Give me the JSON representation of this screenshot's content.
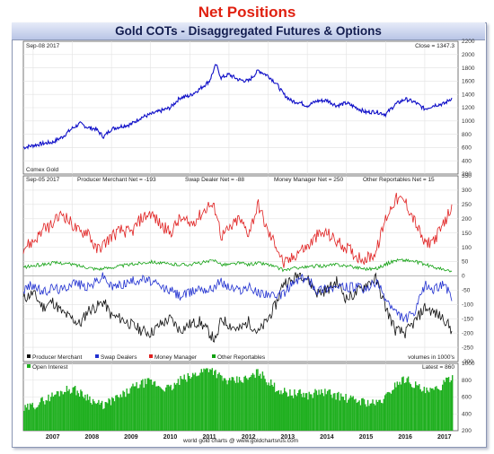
{
  "header": {
    "title": "Net Positions",
    "subtitle": "Gold COTs - Disaggregated Futures & Options",
    "footer": "world gold charts @ www.goldchartsrus.com"
  },
  "colors": {
    "price": "#1010c8",
    "producer": "#111111",
    "swap": "#2030d0",
    "money": "#e02020",
    "other": "#10a010",
    "oi": "#20b020"
  },
  "chart_data": [
    {
      "type": "line",
      "panel": "price",
      "date_label": "Sep-08 2017",
      "readout": "Close = 1347.3",
      "series_label": "Comex Gold",
      "ylim": [
        200,
        2200
      ],
      "yticks": [
        200,
        400,
        600,
        800,
        1000,
        1200,
        1400,
        1600,
        1800,
        2000,
        2200
      ],
      "x": [
        2006.75,
        2007.0,
        2007.25,
        2007.5,
        2007.75,
        2008.0,
        2008.2,
        2008.4,
        2008.6,
        2008.8,
        2009.0,
        2009.25,
        2009.5,
        2009.75,
        2010.0,
        2010.25,
        2010.5,
        2010.75,
        2011.0,
        2011.25,
        2011.5,
        2011.67,
        2011.8,
        2012.0,
        2012.25,
        2012.5,
        2012.75,
        2013.0,
        2013.2,
        2013.4,
        2013.6,
        2013.8,
        2014.0,
        2014.25,
        2014.5,
        2014.75,
        2015.0,
        2015.25,
        2015.5,
        2015.75,
        2016.0,
        2016.25,
        2016.5,
        2016.75,
        2017.0,
        2017.25,
        2017.5,
        2017.69
      ],
      "values": [
        600,
        630,
        660,
        680,
        760,
        890,
        960,
        900,
        880,
        760,
        880,
        920,
        950,
        1050,
        1100,
        1150,
        1200,
        1350,
        1380,
        1480,
        1600,
        1850,
        1650,
        1700,
        1620,
        1600,
        1760,
        1680,
        1570,
        1400,
        1300,
        1280,
        1230,
        1300,
        1310,
        1230,
        1270,
        1200,
        1130,
        1140,
        1100,
        1250,
        1330,
        1280,
        1180,
        1240,
        1260,
        1347
      ]
    },
    {
      "type": "line",
      "panel": "net_positions",
      "date_label": "Sep-05 2017",
      "readouts": [
        "Producer Merchant Net = -193",
        "Swap Dealer Net = -88",
        "Money Manager Net = 250",
        "Other Reportables Net = 15"
      ],
      "units_label": "volumes in 1000's",
      "ylim": [
        -300,
        350
      ],
      "yticks": [
        -300,
        -250,
        -200,
        -150,
        -100,
        -50,
        0,
        50,
        100,
        150,
        200,
        250,
        300,
        350
      ],
      "legend_position": "bottom-left",
      "x": [
        2006.75,
        2007.0,
        2007.25,
        2007.5,
        2007.75,
        2008.0,
        2008.2,
        2008.4,
        2008.6,
        2008.8,
        2009.0,
        2009.25,
        2009.5,
        2009.75,
        2010.0,
        2010.25,
        2010.5,
        2010.75,
        2011.0,
        2011.25,
        2011.5,
        2011.67,
        2011.8,
        2012.0,
        2012.25,
        2012.5,
        2012.75,
        2013.0,
        2013.2,
        2013.4,
        2013.6,
        2013.8,
        2014.0,
        2014.25,
        2014.5,
        2014.75,
        2015.0,
        2015.25,
        2015.5,
        2015.75,
        2016.0,
        2016.25,
        2016.5,
        2016.75,
        2017.0,
        2017.25,
        2017.5,
        2017.69
      ],
      "series": [
        {
          "name": "Producer Merchant",
          "color_key": "producer",
          "values": [
            -80,
            -60,
            -110,
            -90,
            -130,
            -150,
            -170,
            -120,
            -110,
            -90,
            -140,
            -150,
            -170,
            -190,
            -200,
            -170,
            -150,
            -190,
            -170,
            -160,
            -200,
            -230,
            -150,
            -170,
            -190,
            -160,
            -200,
            -150,
            -100,
            -20,
            -20,
            10,
            -10,
            -60,
            -50,
            -20,
            -80,
            -60,
            -30,
            -10,
            -110,
            -190,
            -200,
            -160,
            -110,
            -130,
            -150,
            -193
          ]
        },
        {
          "name": "Swap Dealers",
          "color_key": "swap",
          "values": [
            -50,
            -30,
            -60,
            -40,
            -50,
            -20,
            -30,
            -40,
            -20,
            0,
            -40,
            -30,
            -20,
            -10,
            -20,
            -40,
            -50,
            -70,
            -60,
            -40,
            -50,
            -30,
            -20,
            -40,
            -50,
            -40,
            -60,
            -60,
            -80,
            -60,
            -30,
            -10,
            -10,
            -50,
            -40,
            -40,
            -40,
            -40,
            -50,
            -20,
            -80,
            -130,
            -150,
            -130,
            -30,
            -50,
            -20,
            -88
          ]
        },
        {
          "name": "Money Manager",
          "color_key": "money",
          "values": [
            100,
            120,
            160,
            180,
            220,
            180,
            150,
            160,
            90,
            110,
            140,
            160,
            150,
            200,
            220,
            180,
            150,
            200,
            180,
            210,
            250,
            230,
            140,
            160,
            200,
            150,
            250,
            150,
            110,
            40,
            60,
            90,
            100,
            140,
            150,
            120,
            100,
            70,
            60,
            80,
            200,
            270,
            260,
            190,
            110,
            130,
            180,
            250
          ]
        },
        {
          "name": "Other Reportables",
          "color_key": "other",
          "values": [
            30,
            35,
            40,
            45,
            45,
            40,
            35,
            30,
            25,
            25,
            30,
            35,
            40,
            45,
            50,
            45,
            40,
            40,
            40,
            45,
            50,
            55,
            40,
            40,
            45,
            40,
            45,
            40,
            30,
            20,
            25,
            30,
            30,
            35,
            35,
            40,
            35,
            30,
            25,
            25,
            40,
            55,
            55,
            50,
            40,
            30,
            20,
            15
          ]
        }
      ]
    },
    {
      "type": "bar",
      "panel": "open_interest",
      "series_label": "Open Interest",
      "readout": "Latest = 860",
      "ylim": [
        200,
        1000
      ],
      "yticks": [
        200,
        400,
        600,
        800,
        1000
      ],
      "x": [
        2006.75,
        2007.0,
        2007.25,
        2007.5,
        2007.75,
        2008.0,
        2008.2,
        2008.4,
        2008.6,
        2008.8,
        2009.0,
        2009.25,
        2009.5,
        2009.75,
        2010.0,
        2010.25,
        2010.5,
        2010.75,
        2011.0,
        2011.25,
        2011.5,
        2011.67,
        2011.8,
        2012.0,
        2012.25,
        2012.5,
        2012.75,
        2013.0,
        2013.2,
        2013.4,
        2013.6,
        2013.8,
        2014.0,
        2014.25,
        2014.5,
        2014.75,
        2015.0,
        2015.25,
        2015.5,
        2015.75,
        2016.0,
        2016.25,
        2016.5,
        2016.75,
        2017.0,
        2017.25,
        2017.5,
        2017.69
      ],
      "values": [
        450,
        500,
        560,
        620,
        680,
        700,
        640,
        600,
        520,
        500,
        560,
        610,
        700,
        760,
        780,
        720,
        700,
        800,
        840,
        900,
        950,
        880,
        820,
        780,
        800,
        820,
        900,
        780,
        700,
        660,
        640,
        640,
        620,
        660,
        650,
        620,
        580,
        560,
        540,
        520,
        600,
        760,
        820,
        740,
        660,
        680,
        760,
        860
      ]
    }
  ],
  "x_axis": {
    "xlim": [
      2006.75,
      2017.85
    ],
    "labels": [
      "2007",
      "2008",
      "2009",
      "2010",
      "2011",
      "2012",
      "2013",
      "2014",
      "2015",
      "2016",
      "2017"
    ]
  }
}
